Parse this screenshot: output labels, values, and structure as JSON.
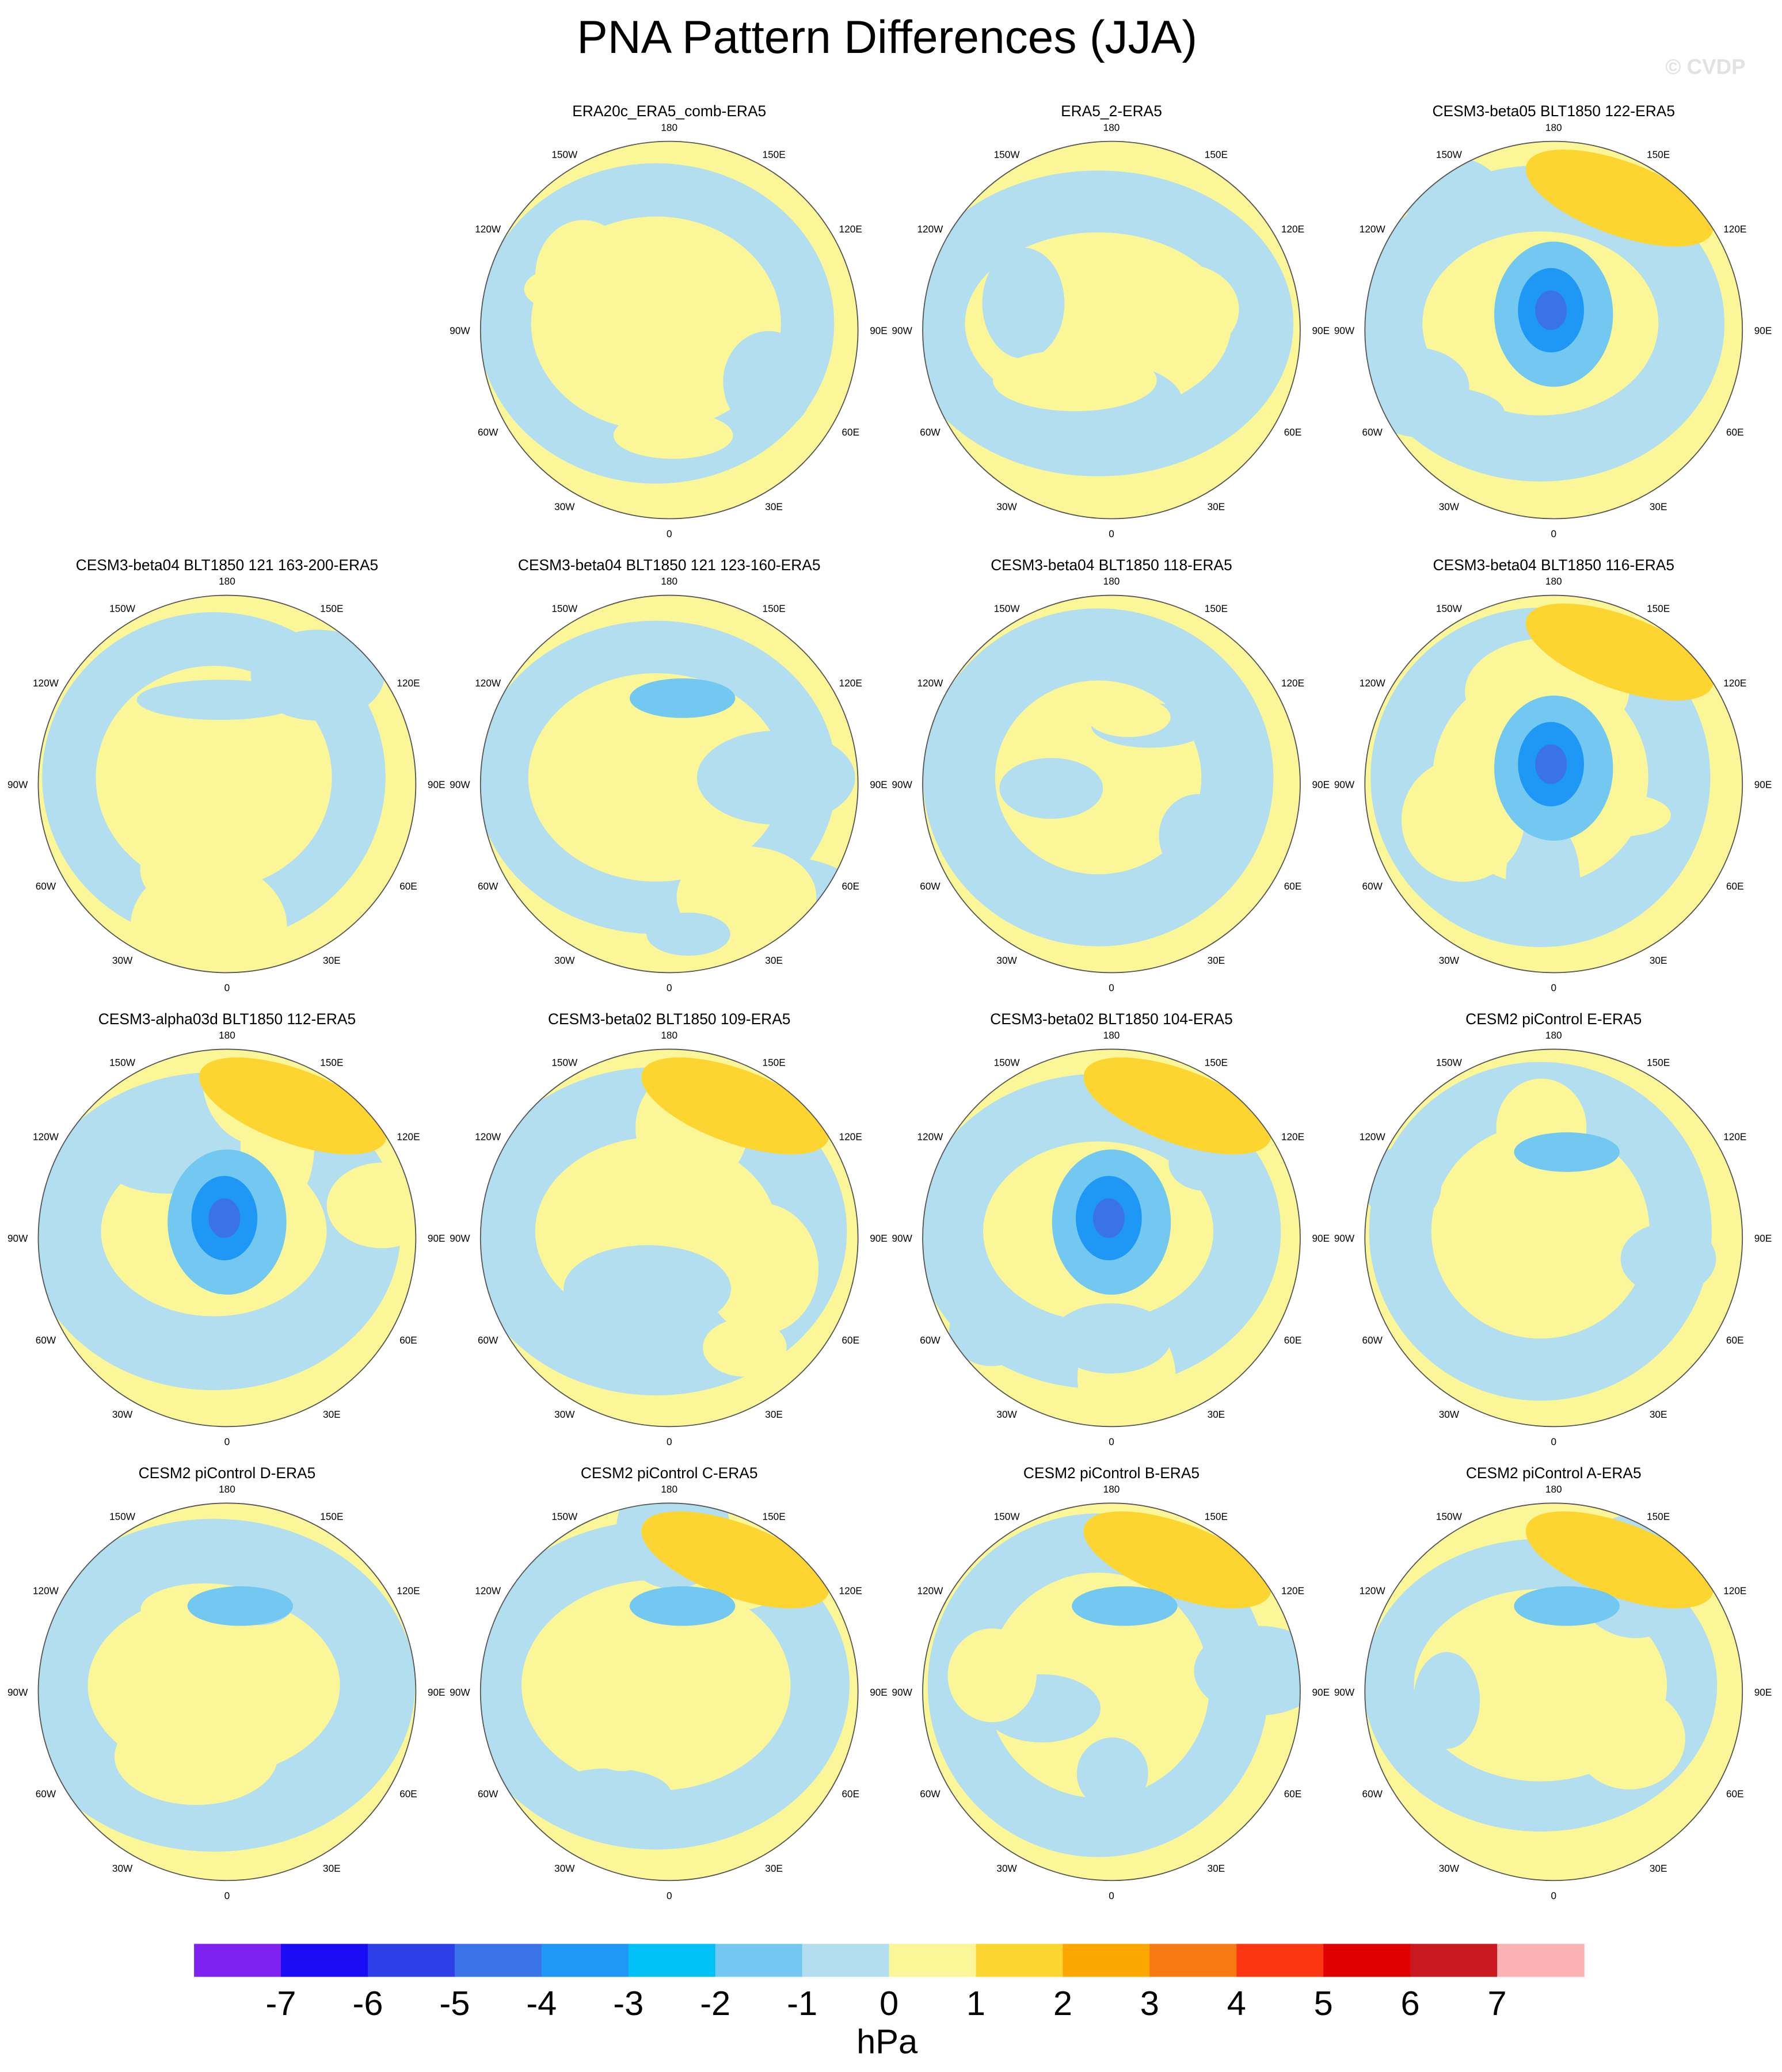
{
  "title": "PNA Pattern Differences (JJA)",
  "watermark": "© CVDP",
  "panels": [
    {
      "title": "ERA20c_ERA5_comb-ERA5"
    },
    {
      "title": "ERA5_2-ERA5"
    },
    {
      "title": "CESM3-beta05 BLT1850 122-ERA5"
    },
    {
      "title": "CESM3-beta04 BLT1850 121 163-200-ERA5"
    },
    {
      "title": "CESM3-beta04 BLT1850 121 123-160-ERA5"
    },
    {
      "title": "CESM3-beta04 BLT1850 118-ERA5"
    },
    {
      "title": "CESM3-beta04 BLT1850 116-ERA5"
    },
    {
      "title": "CESM3-alpha03d BLT1850 112-ERA5"
    },
    {
      "title": "CESM3-beta02 BLT1850 109-ERA5"
    },
    {
      "title": "CESM3-beta02 BLT1850 104-ERA5"
    },
    {
      "title": "CESM2 piControl E-ERA5"
    },
    {
      "title": "CESM2 piControl D-ERA5"
    },
    {
      "title": "CESM2 piControl C-ERA5"
    },
    {
      "title": "CESM2 piControl B-ERA5"
    },
    {
      "title": "CESM2 piControl A-ERA5"
    }
  ],
  "lon_labels": [
    "180",
    "150E",
    "120E",
    "90E",
    "60E",
    "30E",
    "0",
    "30W",
    "60W",
    "90W",
    "120W",
    "150W"
  ],
  "colorbar": {
    "colors": [
      "#7f22f0",
      "#1a0df5",
      "#2e3fe8",
      "#3a72e8",
      "#1e97f5",
      "#00c0f5",
      "#72c8f0",
      "#b3def0",
      "#fbf798",
      "#fcd531",
      "#fca700",
      "#f77b12",
      "#fb3610",
      "#e00000",
      "#c9181f",
      "#fcb2b2"
    ],
    "ticks": [
      -7,
      -6,
      -5,
      -4,
      -3,
      -2,
      -1,
      0,
      1,
      2,
      3,
      4,
      5,
      6,
      7
    ],
    "label": "hPa"
  }
}
